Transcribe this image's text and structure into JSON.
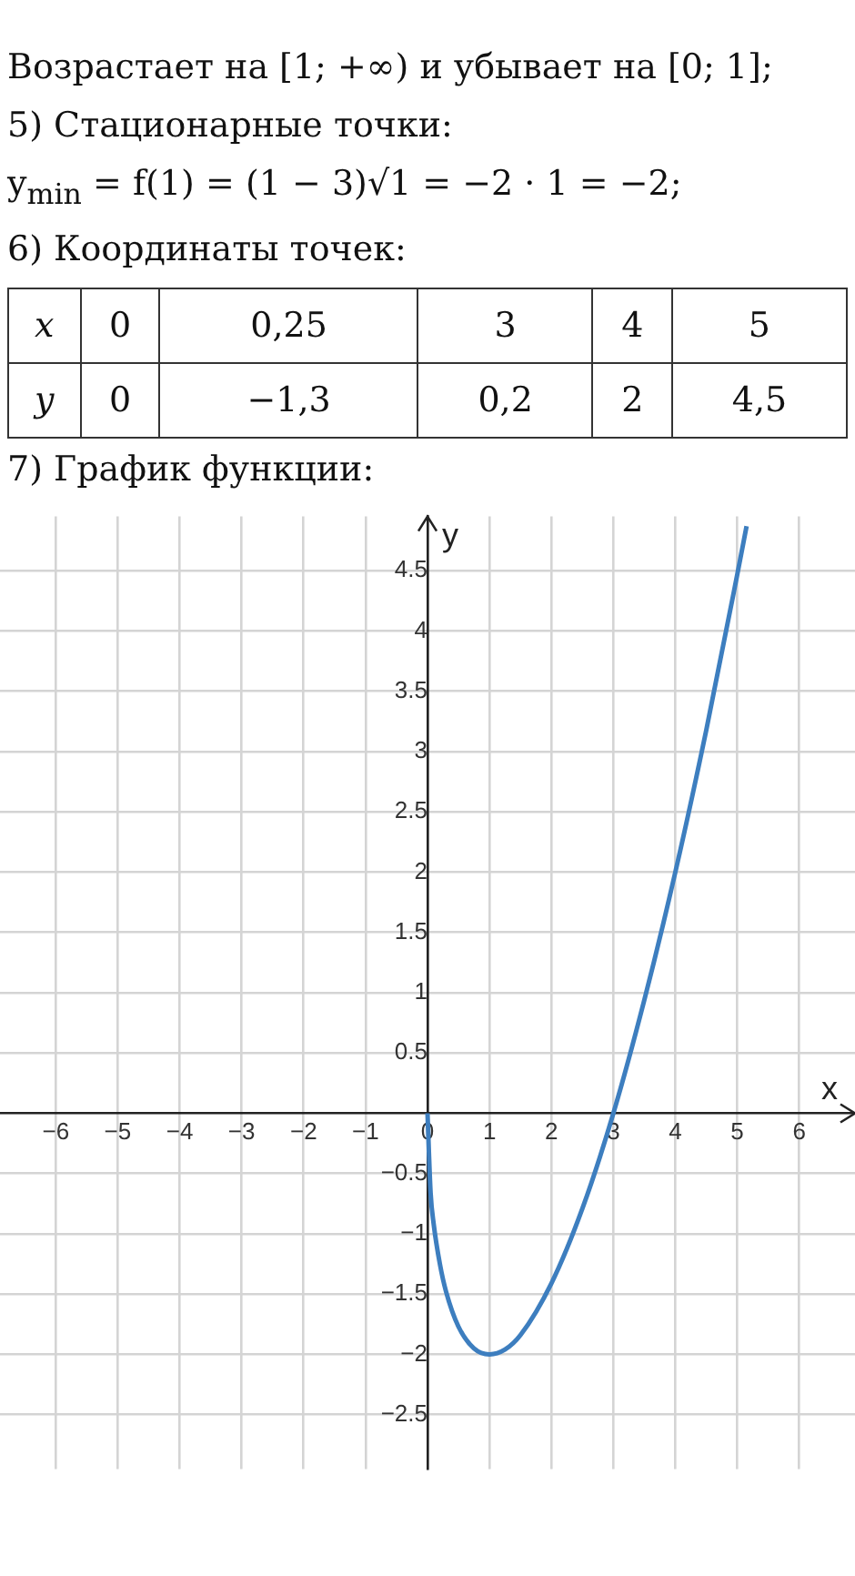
{
  "chart_data": {
    "type": "line",
    "title": "7) График функции:",
    "xlabel": "x",
    "ylabel": "y",
    "annotations": [
      "Возрастает на [1; +∞) и убывает на [0; 1];",
      "5) Стационарные точки:",
      "y$_{min}$ = f(1) = (1 − 3)√1 = −2 · 1 = −2;",
      "6) Координаты точек:",
      "x\t0\t0,25\t3\t4\t5",
      "y\t0\t−1,3\t0,2\t2\t4,5"
    ],
    "series": [
      {
        "color": "#3d7ebf",
        "x": [
          0,
          0.05,
          0.1,
          0.2,
          0.3,
          0.5,
          0.75,
          1,
          1.25,
          1.5,
          2,
          2.5,
          3,
          3.5,
          4,
          4.5,
          5,
          5.15
        ],
        "values": [
          0,
          -0.66,
          -0.92,
          -1.25,
          -1.48,
          -1.77,
          -1.95,
          -2,
          -1.96,
          -1.84,
          -1.41,
          -0.79,
          0,
          0.94,
          2,
          3.18,
          4.47,
          4.87
        ]
      }
    ],
    "xlim": [
      -6.9,
      6.9
    ],
    "ylim": [
      -2.95,
      4.95
    ],
    "xticks": [
      {
        "value": -6,
        "label": "−6"
      },
      {
        "value": -5,
        "label": "−5"
      },
      {
        "value": -4,
        "label": "−4"
      },
      {
        "value": -3,
        "label": "−3"
      },
      {
        "value": -2,
        "label": "−2"
      },
      {
        "value": -1,
        "label": "−1"
      },
      0,
      1,
      2,
      3,
      4,
      5,
      6
    ],
    "yticks": [
      {
        "value": -2.5,
        "label": "−2.5"
      },
      {
        "value": -2,
        "label": "−2"
      },
      {
        "value": -1.5,
        "label": "−1.5"
      },
      {
        "value": -1,
        "label": "−1"
      },
      {
        "value": -0.5,
        "label": "−0.5"
      },
      0.5,
      1,
      1.5,
      2,
      2.5,
      3,
      3.5,
      4,
      4.5
    ],
    "grid": true,
    "legend": false,
    "marker": "none",
    "line_style": "solid"
  }
}
